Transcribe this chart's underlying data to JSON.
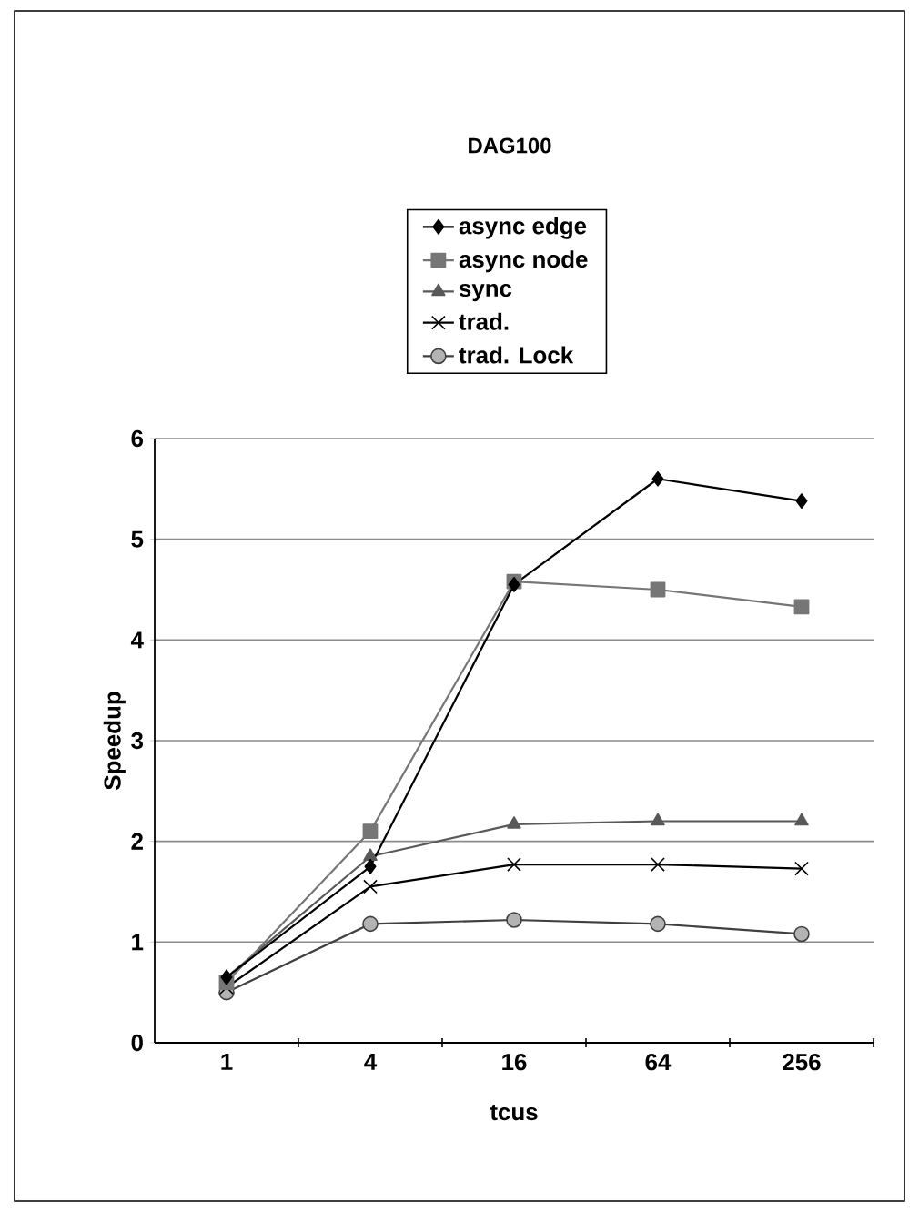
{
  "chart_data": {
    "type": "line",
    "title": "DAG100",
    "xlabel": "tcus",
    "ylabel": "Speedup",
    "categories": [
      "1",
      "4",
      "16",
      "64",
      "256"
    ],
    "series": [
      {
        "name": "async edge",
        "color": "#000000",
        "marker": "diamond",
        "values": [
          0.65,
          1.75,
          4.55,
          5.6,
          5.38
        ]
      },
      {
        "name": "async node",
        "color": "#767676",
        "marker": "square",
        "values": [
          0.6,
          2.1,
          4.58,
          4.5,
          4.33
        ]
      },
      {
        "name": "sync",
        "color": "#595959",
        "marker": "triangle",
        "values": [
          0.65,
          1.85,
          2.17,
          2.2,
          2.2
        ]
      },
      {
        "name": "trad.",
        "color": "#000000",
        "marker": "cross",
        "values": [
          0.55,
          1.55,
          1.77,
          1.77,
          1.73
        ]
      },
      {
        "name": "trad. Lock",
        "color": "#404040",
        "marker": "circle",
        "values": [
          0.5,
          1.18,
          1.22,
          1.18,
          1.08
        ]
      }
    ],
    "ylim": [
      0,
      6
    ],
    "yticks": [
      0,
      1,
      2,
      3,
      4,
      5,
      6
    ],
    "grid": "y",
    "legend": "top"
  }
}
